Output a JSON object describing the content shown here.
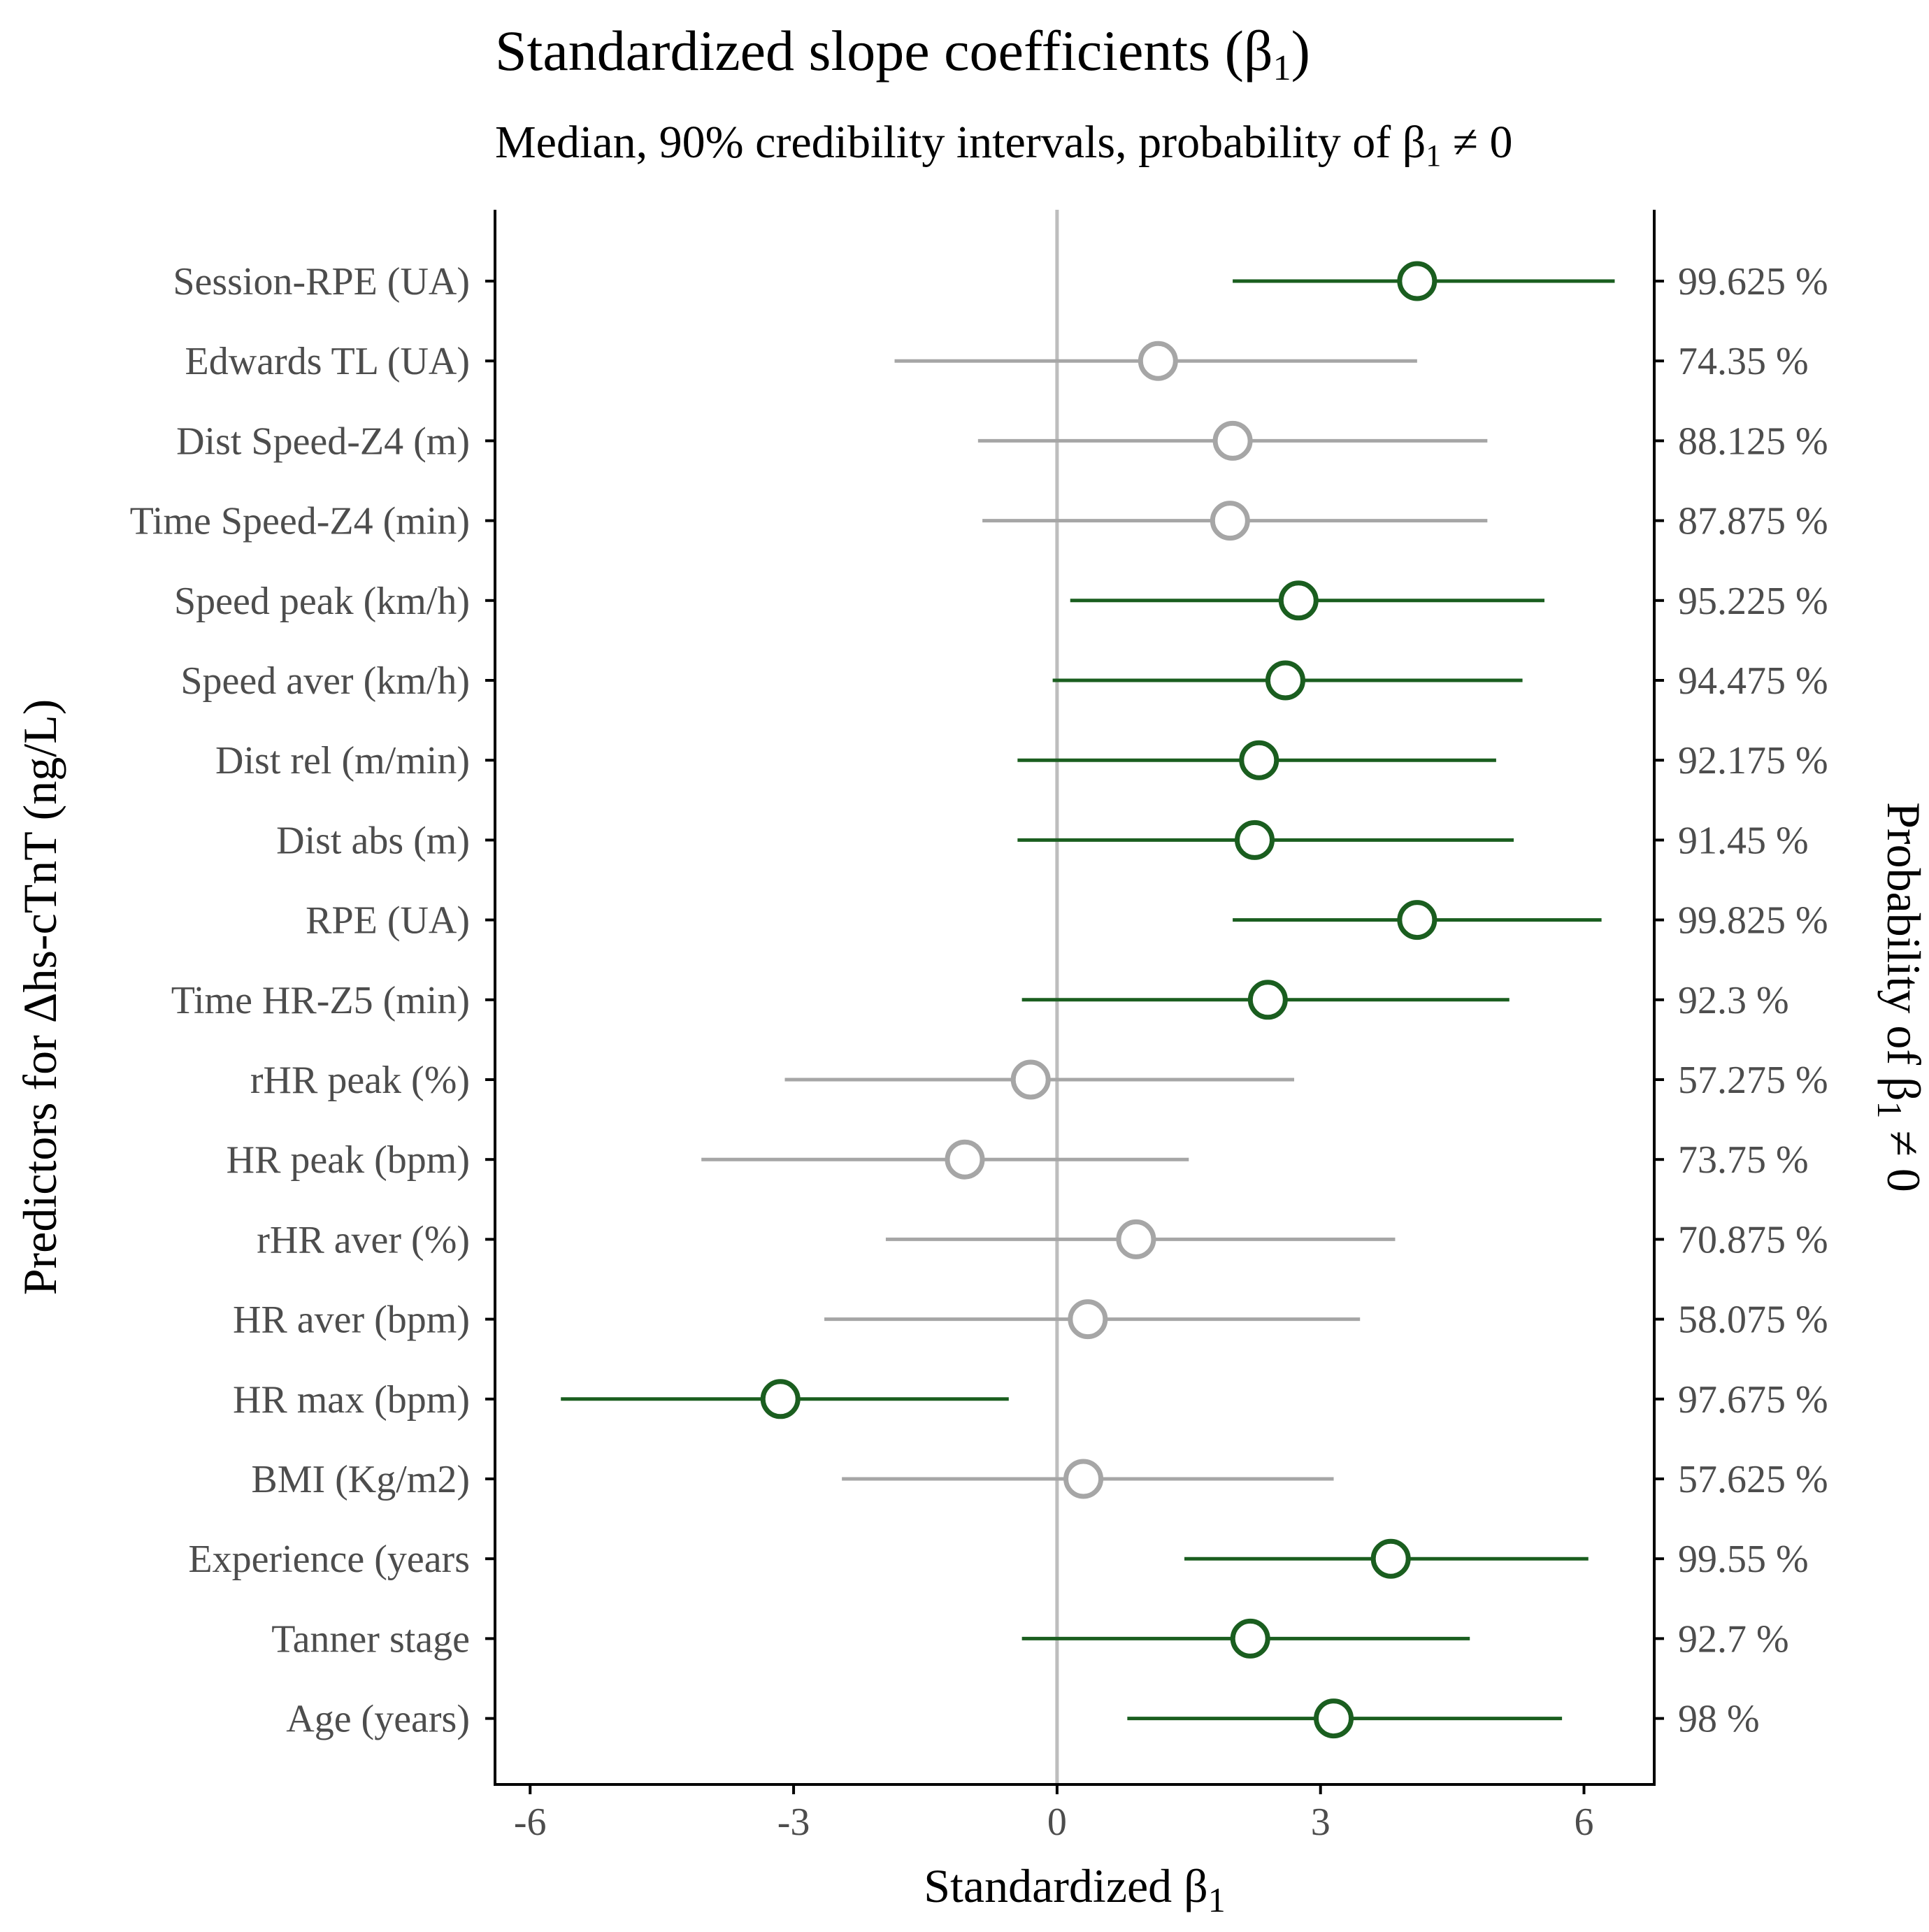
{
  "chart_data": {
    "type": "forest",
    "title_text": "Standardized slope coefficients (β",
    "title_sub": "1",
    "title_end": ")",
    "subtitle_text": "Median, 90% credibility intervals, probability of β",
    "subtitle_sub": "1",
    "subtitle_end": " ≠ 0",
    "xlabel_text": "Standardized β",
    "xlabel_sub": "1",
    "ylabel": "Predictors for Δhs-cTnT (ng/L)",
    "ylabel_right_text": "Probability of β",
    "ylabel_right_sub": "1",
    "ylabel_right_end": " ≠ 0",
    "xlim": [
      -6.4,
      6.8
    ],
    "x_ticks": [
      -6,
      -3,
      0,
      3,
      6
    ],
    "x_tick_labels": [
      "-6",
      "-3",
      "0",
      "3",
      "6"
    ],
    "reference_line": 0,
    "colors": {
      "credible": "#1a5e1f",
      "not_credible": "#a6a6a6",
      "refline": "#bdbdbd",
      "axis": "#000000"
    },
    "rows": [
      {
        "label": "Session-RPE (UA)",
        "median": 4.1,
        "lower": 2.0,
        "upper": 6.35,
        "prob": "99.625 %",
        "credible": true
      },
      {
        "label": "Edwards TL (UA)",
        "median": 1.15,
        "lower": -1.85,
        "upper": 4.1,
        "prob": "74.35 %",
        "credible": false
      },
      {
        "label": "Dist Speed-Z4 (m)",
        "median": 2.0,
        "lower": -0.9,
        "upper": 4.9,
        "prob": "88.125 %",
        "credible": false
      },
      {
        "label": "Time Speed-Z4 (min)",
        "median": 1.97,
        "lower": -0.85,
        "upper": 4.9,
        "prob": "87.875 %",
        "credible": false
      },
      {
        "label": "Speed peak (km/h)",
        "median": 2.75,
        "lower": 0.15,
        "upper": 5.55,
        "prob": "95.225 %",
        "credible": true
      },
      {
        "label": "Speed aver (km/h)",
        "median": 2.6,
        "lower": -0.05,
        "upper": 5.3,
        "prob": "94.475 %",
        "credible": true
      },
      {
        "label": "Dist rel (m/min)",
        "median": 2.3,
        "lower": -0.45,
        "upper": 5.0,
        "prob": "92.175 %",
        "credible": true
      },
      {
        "label": "Dist abs (m)",
        "median": 2.25,
        "lower": -0.45,
        "upper": 5.2,
        "prob": "91.45 %",
        "credible": true
      },
      {
        "label": "RPE (UA)",
        "median": 4.1,
        "lower": 2.0,
        "upper": 6.2,
        "prob": "99.825 %",
        "credible": true
      },
      {
        "label": "Time HR-Z5 (min)",
        "median": 2.4,
        "lower": -0.4,
        "upper": 5.15,
        "prob": "92.3 %",
        "credible": true
      },
      {
        "label": "rHR peak (%)",
        "median": -0.3,
        "lower": -3.1,
        "upper": 2.7,
        "prob": "57.275 %",
        "credible": false
      },
      {
        "label": "HR peak (bpm)",
        "median": -1.05,
        "lower": -4.05,
        "upper": 1.5,
        "prob": "73.75 %",
        "credible": false
      },
      {
        "label": "rHR aver (%)",
        "median": 0.9,
        "lower": -1.95,
        "upper": 3.85,
        "prob": "70.875 %",
        "credible": false
      },
      {
        "label": "HR aver (bpm)",
        "median": 0.35,
        "lower": -2.65,
        "upper": 3.45,
        "prob": "58.075 %",
        "credible": false
      },
      {
        "label": "HR max (bpm)",
        "median": -3.15,
        "lower": -5.65,
        "upper": -0.55,
        "prob": "97.675 %",
        "credible": true
      },
      {
        "label": "BMI (Kg/m2)",
        "median": 0.3,
        "lower": -2.45,
        "upper": 3.15,
        "prob": "57.625 %",
        "credible": false
      },
      {
        "label": "Experience (years",
        "median": 3.8,
        "lower": 1.45,
        "upper": 6.05,
        "prob": "99.55 %",
        "credible": true
      },
      {
        "label": "Tanner stage",
        "median": 2.2,
        "lower": -0.4,
        "upper": 4.7,
        "prob": "92.7 %",
        "credible": true
      },
      {
        "label": "Age (years)",
        "median": 3.15,
        "lower": 0.8,
        "upper": 5.75,
        "prob": "98 %",
        "credible": true
      }
    ]
  }
}
